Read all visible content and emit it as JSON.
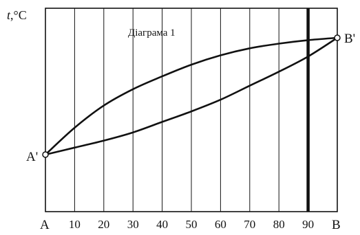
{
  "figure": {
    "title": "Діаграма 1",
    "y_axis_symbol": "t",
    "y_axis_unit": ",°C",
    "left_bottom_label": "A",
    "right_bottom_label": "B",
    "left_point_label": "A'",
    "right_point_label": "B'"
  },
  "chart_data": {
    "type": "line",
    "x_ticks": [
      "10",
      "20",
      "30",
      "40",
      "50",
      "60",
      "70",
      "80",
      "90"
    ],
    "x_range": [
      0,
      100
    ],
    "grid": "vertical lines at every 10",
    "highlight_x": 90,
    "series": [
      {
        "x": [
          0,
          10,
          20,
          30,
          40,
          50,
          60,
          70,
          80,
          90,
          100
        ],
        "y": [
          0,
          0.06,
          0.12,
          0.19,
          0.28,
          0.37,
          0.47,
          0.59,
          0.71,
          0.84,
          1.0
        ]
      },
      {
        "x": [
          0,
          10,
          20,
          30,
          40,
          50,
          60,
          70,
          80,
          90,
          100
        ],
        "y": [
          0,
          0.23,
          0.42,
          0.56,
          0.67,
          0.77,
          0.85,
          0.91,
          0.95,
          0.98,
          1.0
        ]
      }
    ]
  }
}
